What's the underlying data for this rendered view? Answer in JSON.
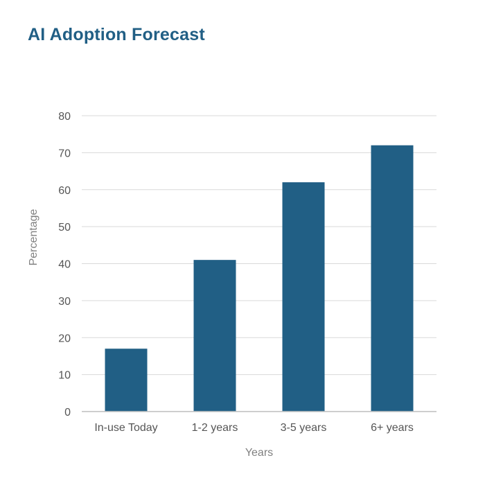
{
  "chart_data": {
    "type": "bar",
    "title": "AI Adoption Forecast",
    "xlabel": "Years",
    "ylabel": "Percentage",
    "categories": [
      "In-use Today",
      "1-2 years",
      "3-5 years",
      "6+ years"
    ],
    "values": [
      17,
      41,
      62,
      72
    ],
    "ylim": [
      0,
      80
    ],
    "yticks": [
      0,
      10,
      20,
      30,
      40,
      50,
      60,
      70,
      80
    ],
    "grid": true,
    "legend": "none",
    "bar_color": "#215f85"
  },
  "colors": {
    "title": "#215f85",
    "bar": "#215f85",
    "grid": "#d9d9d9",
    "tick_text": "#555555",
    "axis_title": "#808080"
  }
}
